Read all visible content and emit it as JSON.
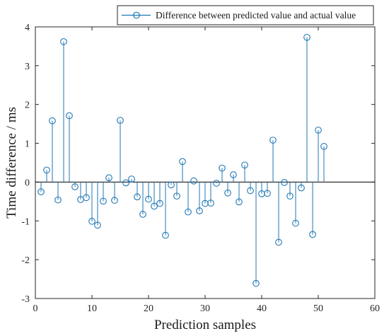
{
  "chart_data": {
    "type": "stem",
    "xlabel": "Prediction samples",
    "ylabel": "Time difference / ms",
    "xlim": [
      0,
      60
    ],
    "ylim": [
      -3,
      4
    ],
    "xticks": [
      0,
      10,
      20,
      30,
      40,
      50,
      60
    ],
    "yticks": [
      -3,
      -2,
      -1,
      0,
      1,
      2,
      3,
      4
    ],
    "grid": false,
    "legend_position": "top-right",
    "baseline": 0,
    "series": [
      {
        "name": "Difference between predicted value and actual value",
        "color": "#1f77b4",
        "marker": "open-circle",
        "x": [
          1,
          2,
          3,
          4,
          5,
          6,
          7,
          8,
          9,
          10,
          11,
          12,
          13,
          14,
          15,
          16,
          17,
          18,
          19,
          20,
          21,
          22,
          23,
          24,
          25,
          26,
          27,
          28,
          29,
          30,
          31,
          32,
          33,
          34,
          35,
          36,
          37,
          38,
          39,
          40,
          41,
          42,
          43,
          44,
          45,
          46,
          47,
          48,
          49,
          50,
          51
        ],
        "values": [
          -0.25,
          0.31,
          1.58,
          -0.46,
          3.62,
          1.71,
          -0.12,
          -0.45,
          -0.4,
          -1.01,
          -1.11,
          -0.49,
          0.11,
          -0.47,
          1.59,
          -0.02,
          0.08,
          -0.38,
          -0.83,
          -0.44,
          -0.62,
          -0.55,
          -1.37,
          -0.07,
          -0.36,
          0.53,
          -0.77,
          0.03,
          -0.74,
          -0.55,
          -0.54,
          -0.03,
          0.36,
          -0.28,
          0.19,
          -0.51,
          0.44,
          -0.22,
          -2.61,
          -0.3,
          -0.29,
          1.08,
          -1.55,
          -0.01,
          -0.36,
          -1.06,
          -0.15,
          3.73,
          -1.35,
          1.34,
          0.92
        ]
      }
    ]
  }
}
